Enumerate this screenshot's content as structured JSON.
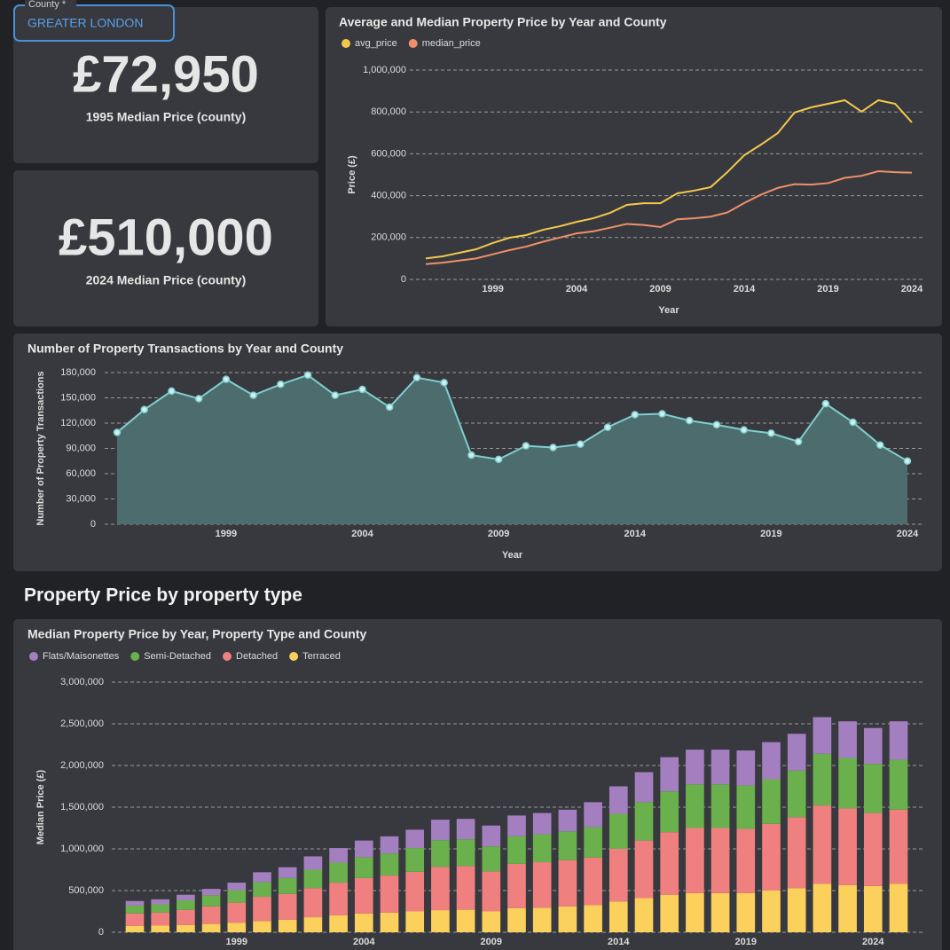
{
  "filter": {
    "label": "County *",
    "value": "GREATER LONDON"
  },
  "kpis": [
    {
      "value": "£72,950",
      "label": "1995 Median Price (county)"
    },
    {
      "value": "£510,000",
      "label": "2024 Median Price (county)"
    }
  ],
  "section_title": "Property Price by property type",
  "chart_data": [
    {
      "type": "line",
      "title": "Average and Median Property Price by Year and County",
      "xlabel": "Year",
      "ylabel": "Price (£)",
      "x": [
        1995,
        1996,
        1997,
        1998,
        1999,
        2000,
        2001,
        2002,
        2003,
        2004,
        2005,
        2006,
        2007,
        2008,
        2009,
        2010,
        2011,
        2012,
        2013,
        2014,
        2015,
        2016,
        2017,
        2018,
        2019,
        2020,
        2021,
        2022,
        2023,
        2024
      ],
      "series": [
        {
          "name": "avg_price",
          "color": "#f5c84c",
          "values": [
            100000,
            110000,
            127000,
            144000,
            174000,
            199000,
            212000,
            237000,
            254000,
            275000,
            292000,
            318000,
            356000,
            364000,
            364000,
            411000,
            424000,
            441000,
            513000,
            593000,
            644000,
            699000,
            797000,
            822000,
            839000,
            856000,
            801000,
            856000,
            839000,
            750000
          ]
        },
        {
          "name": "median_price",
          "color": "#f0906a",
          "values": [
            72950,
            80000,
            90000,
            100000,
            120000,
            140000,
            157000,
            180000,
            200000,
            220000,
            230000,
            247000,
            265000,
            260000,
            250000,
            287000,
            292000,
            300000,
            320000,
            365000,
            405000,
            437000,
            455000,
            453000,
            460000,
            485000,
            495000,
            517000,
            512000,
            510000
          ]
        }
      ],
      "xlim": [
        1995,
        2024
      ],
      "xticks": [
        1999,
        2004,
        2009,
        2014,
        2019,
        2024
      ],
      "ylim": [
        0,
        1000000
      ],
      "yticks": [
        0,
        {
          "value": 200000,
          "label": "200,000"
        },
        {
          "value": 400000,
          "label": "400,000"
        },
        {
          "value": 600000,
          "label": "600,000"
        },
        {
          "value": 800000,
          "label": "800,000"
        },
        {
          "value": 1000000,
          "label": "1,000,000"
        }
      ],
      "grid": true,
      "legend": "top-left"
    },
    {
      "type": "area",
      "title": "Number of Property Transactions by Year and County",
      "xlabel": "Year",
      "ylabel": "Number of Property Transactions",
      "x": [
        1995,
        1996,
        1997,
        1998,
        1999,
        2000,
        2001,
        2002,
        2003,
        2004,
        2005,
        2006,
        2007,
        2008,
        2009,
        2010,
        2011,
        2012,
        2013,
        2014,
        2015,
        2016,
        2017,
        2018,
        2019,
        2020,
        2021,
        2022,
        2023,
        2024
      ],
      "values": [
        109000,
        136000,
        158000,
        149000,
        172000,
        153000,
        166000,
        177000,
        153000,
        160000,
        139000,
        174000,
        168000,
        82000,
        77000,
        93000,
        91000,
        95000,
        115000,
        130000,
        131000,
        123000,
        118000,
        112000,
        108000,
        98000,
        143000,
        121000,
        94000,
        75000
      ],
      "color": "#7ecfcf",
      "xlim": [
        1995,
        2024
      ],
      "xticks": [
        1999,
        2004,
        2009,
        2014,
        2019,
        2024
      ],
      "ylim": [
        0,
        180000
      ],
      "yticks": [
        0,
        {
          "value": 30000,
          "label": "30,000"
        },
        {
          "value": 60000,
          "label": "60,000"
        },
        {
          "value": 90000,
          "label": "90,000"
        },
        {
          "value": 120000,
          "label": "120,000"
        },
        {
          "value": 150000,
          "label": "150,000"
        },
        {
          "value": 180000,
          "label": "180,000"
        }
      ],
      "grid": true
    },
    {
      "type": "bar",
      "stacked": true,
      "title": "Median Property Price by Year, Property Type and County",
      "ylabel": "Median Price (£)",
      "x": [
        1995,
        1996,
        1997,
        1998,
        1999,
        2000,
        2001,
        2002,
        2003,
        2004,
        2005,
        2006,
        2007,
        2008,
        2009,
        2010,
        2011,
        2012,
        2013,
        2014,
        2015,
        2016,
        2017,
        2018,
        2019,
        2020,
        2021,
        2022,
        2023,
        2024,
        2025
      ],
      "series": [
        {
          "name": "Flats/Maisonettes",
          "color": "#a37fc0",
          "values": [
            55000,
            60000,
            67000,
            75000,
            90000,
            120000,
            130000,
            160000,
            175000,
            200000,
            205000,
            220000,
            245000,
            245000,
            250000,
            250000,
            255000,
            260000,
            300000,
            330000,
            360000,
            410000,
            415000,
            415000,
            420000,
            445000,
            440000,
            440000,
            440000,
            430000,
            460000
          ]
        },
        {
          "name": "Semi-Detached",
          "color": "#6ab04c",
          "values": [
            95000,
            100000,
            115000,
            135000,
            150000,
            175000,
            190000,
            220000,
            240000,
            250000,
            265000,
            285000,
            320000,
            320000,
            300000,
            330000,
            335000,
            345000,
            365000,
            420000,
            460000,
            490000,
            525000,
            525000,
            520000,
            535000,
            560000,
            620000,
            605000,
            590000,
            600000
          ]
        },
        {
          "name": "Detached",
          "color": "#f08080",
          "values": [
            150000,
            155000,
            180000,
            210000,
            240000,
            290000,
            310000,
            350000,
            390000,
            425000,
            445000,
            475000,
            520000,
            525000,
            480000,
            530000,
            545000,
            555000,
            570000,
            630000,
            690000,
            750000,
            780000,
            780000,
            770000,
            800000,
            850000,
            940000,
            920000,
            875000,
            890000
          ]
        },
        {
          "name": "Terraced",
          "color": "#fcd05c",
          "values": [
            75000,
            80000,
            88000,
            100000,
            115000,
            135000,
            150000,
            180000,
            205000,
            225000,
            235000,
            250000,
            265000,
            270000,
            250000,
            290000,
            295000,
            310000,
            325000,
            370000,
            410000,
            450000,
            470000,
            470000,
            470000,
            500000,
            530000,
            580000,
            565000,
            555000,
            580000
          ]
        }
      ],
      "xlim": [
        1995,
        2025
      ],
      "xticks": [
        1999,
        2004,
        2009,
        2014,
        2019,
        2024
      ],
      "ylim": [
        0,
        3000000
      ],
      "yticks": [
        0,
        {
          "value": 500000,
          "label": "500,000"
        },
        {
          "value": 1000000,
          "label": "1,000,000"
        },
        {
          "value": 1500000,
          "label": "1,500,000"
        },
        {
          "value": 2000000,
          "label": "2,000,000"
        },
        {
          "value": 2500000,
          "label": "2,500,000"
        },
        {
          "value": 3000000,
          "label": "3,000,000"
        }
      ],
      "grid": true,
      "legend": "top-left"
    }
  ]
}
